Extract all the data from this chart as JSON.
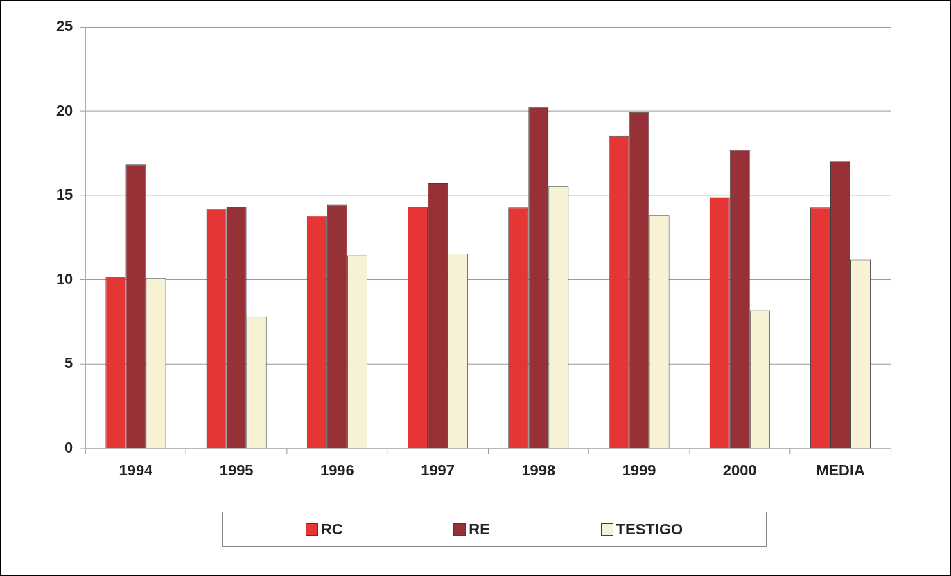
{
  "chart_data": {
    "type": "bar",
    "categories": [
      "1994",
      "1995",
      "1996",
      "1997",
      "1998",
      "1999",
      "2000",
      "MEDIA"
    ],
    "series": [
      {
        "name": "RC",
        "color": "#e63535",
        "values": [
          10.2,
          14.2,
          13.8,
          14.35,
          14.3,
          18.55,
          14.9,
          14.3
        ]
      },
      {
        "name": "RE",
        "color": "#963237",
        "values": [
          16.85,
          14.35,
          14.45,
          15.75,
          20.25,
          19.95,
          17.7,
          17.05
        ]
      },
      {
        "name": "TESTIGO",
        "color": "#f7f2d4",
        "values": [
          10.1,
          7.8,
          11.45,
          11.55,
          15.55,
          13.85,
          8.2,
          11.2
        ]
      }
    ],
    "ylim": [
      0,
      25
    ],
    "yticks": [
      0,
      5,
      10,
      15,
      20,
      25
    ],
    "grid": "y",
    "legend": "bottom"
  }
}
